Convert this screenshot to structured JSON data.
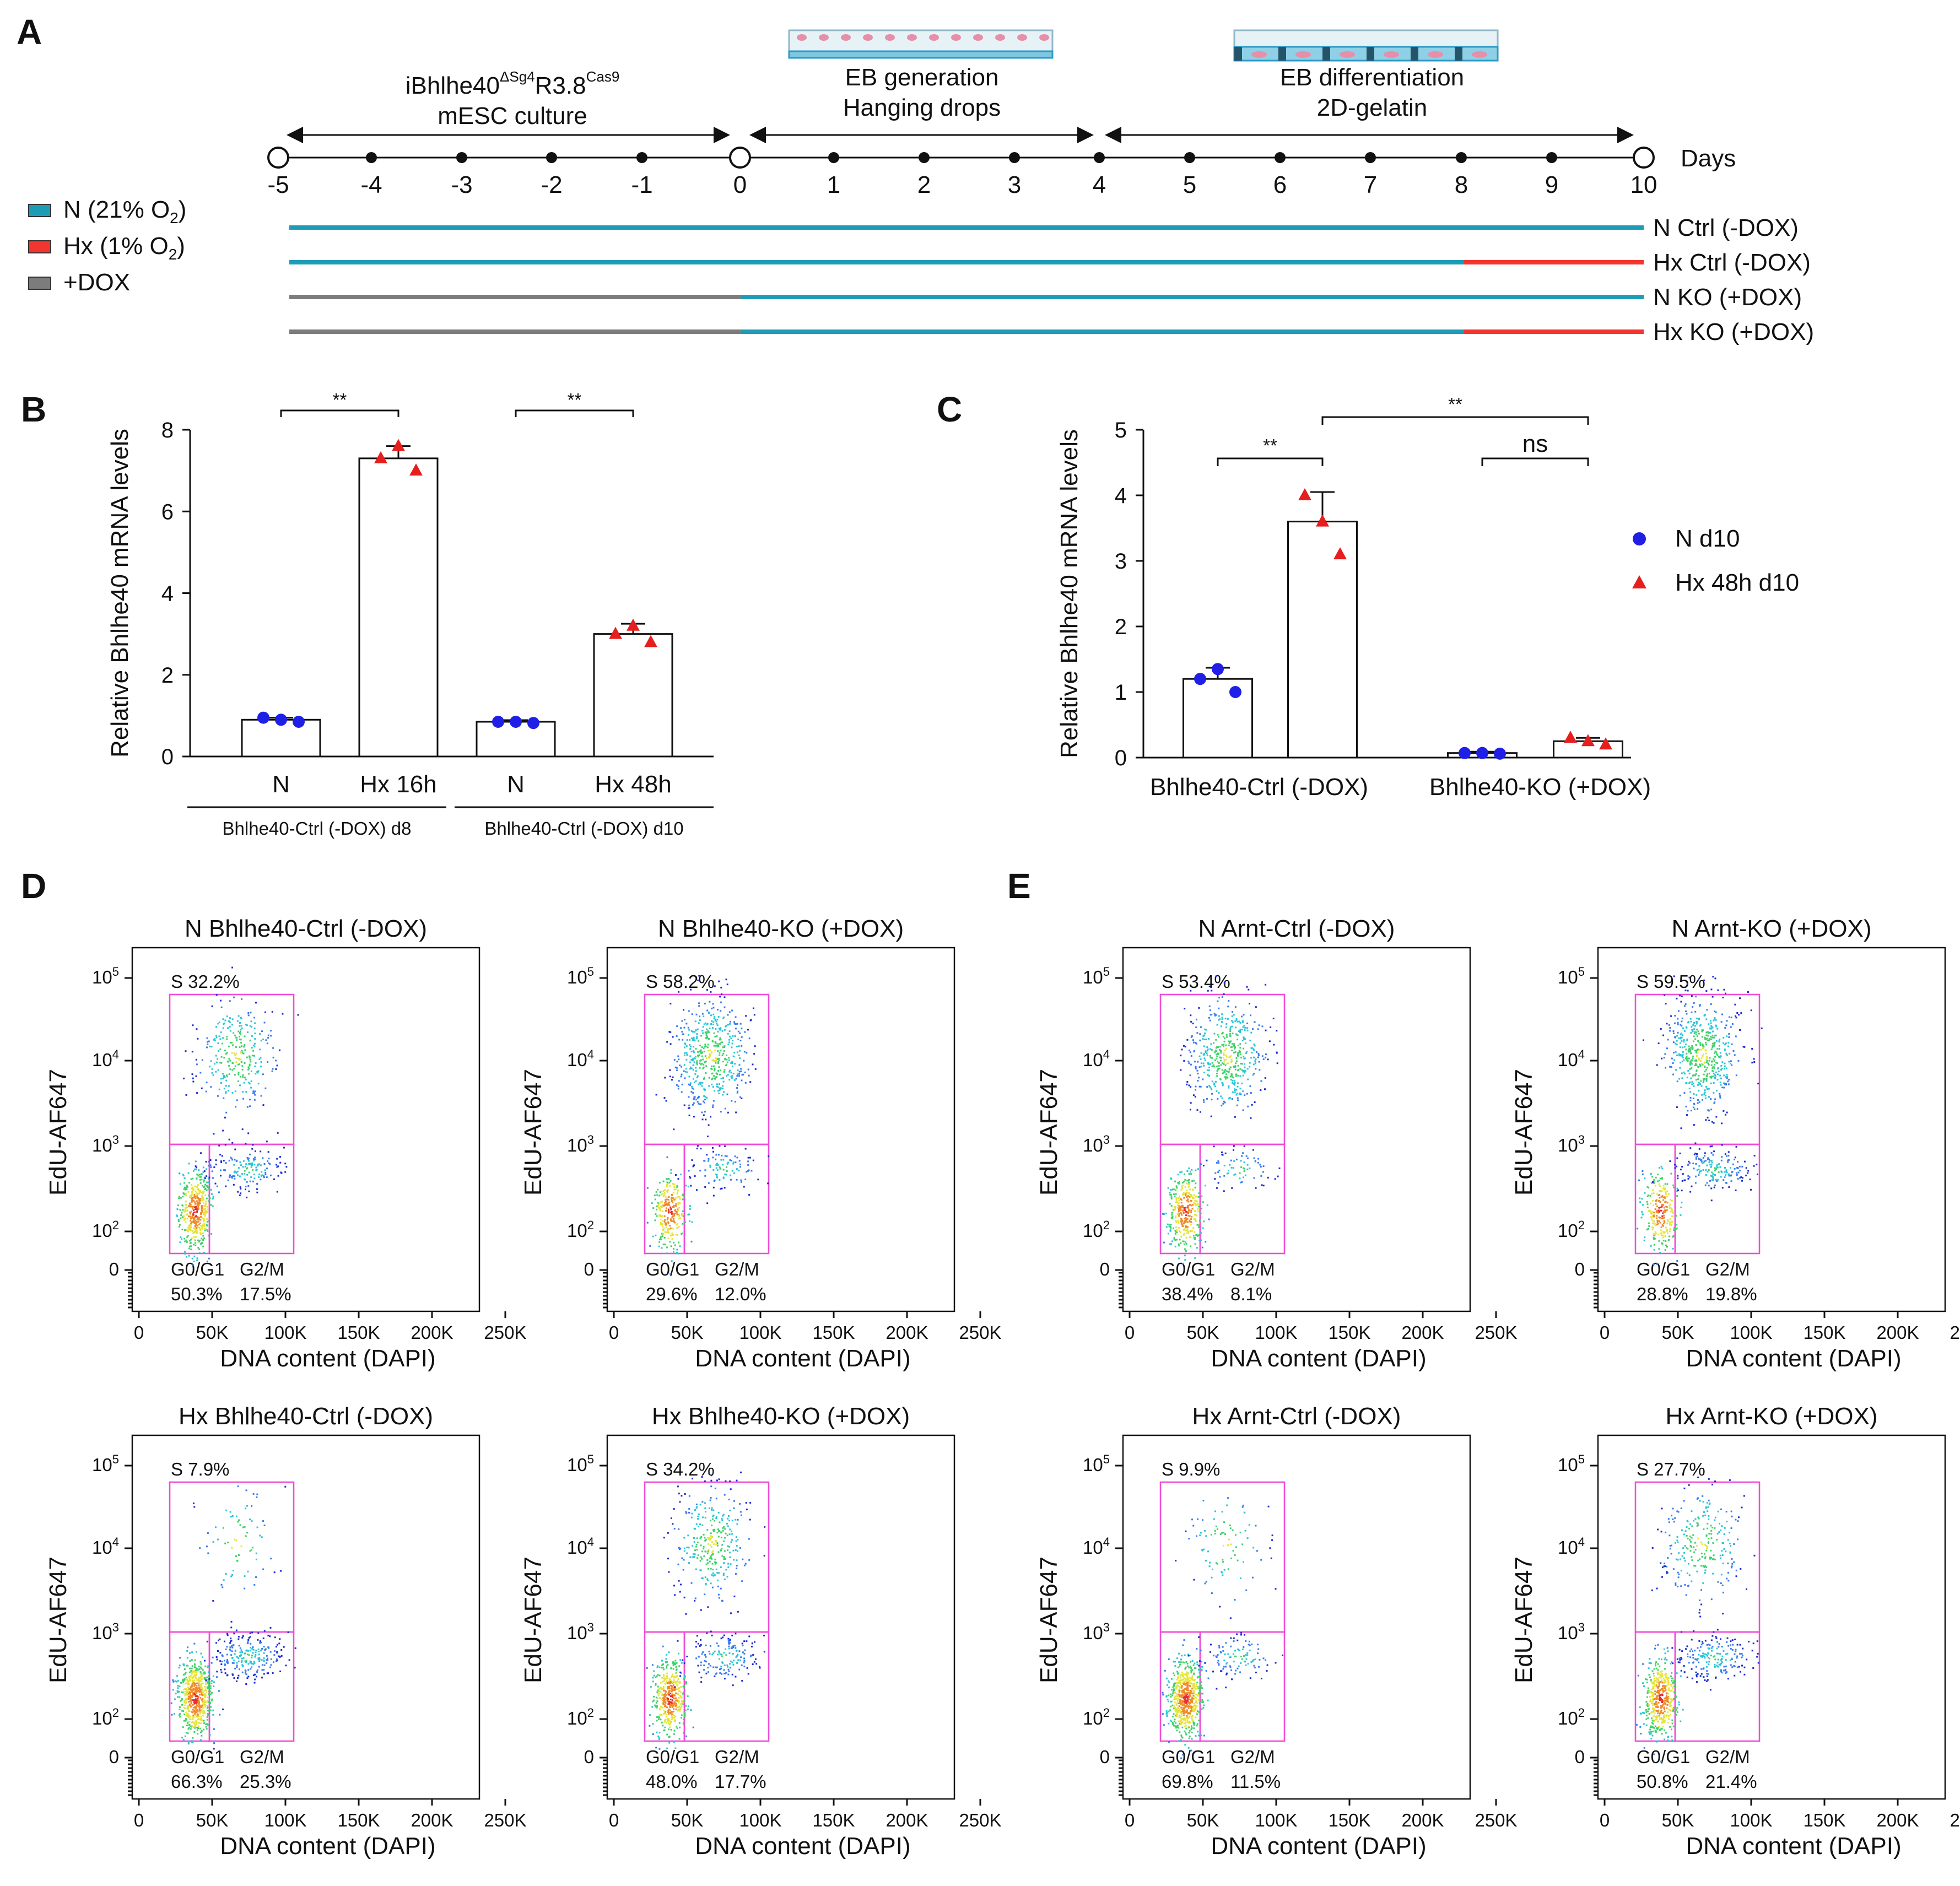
{
  "colors": {
    "normoxia": "#1e9cb6",
    "hypoxia": "#f2362f",
    "dox": "#7c7c7c",
    "point_n": "#1f1fe6",
    "point_hx": "#e61e1e",
    "gate": "#f04cd8"
  },
  "panelA": {
    "label": "A",
    "culture_title_prefix": "iBhlhe40",
    "culture_title_sup1": "ΔSg4",
    "culture_title_mid": "R3.8",
    "culture_title_sup2": "Cas9",
    "culture_title_line2": "mESC culture",
    "eb_gen_line1": "EB generation",
    "eb_gen_line2": "Hanging drops",
    "eb_diff_line1": "EB differentiation",
    "eb_diff_line2": "2D-gelatin",
    "days_label": "Days",
    "day_ticks": [
      "-5",
      "-4",
      "-3",
      "-2",
      "-1",
      "0",
      "1",
      "2",
      "3",
      "4",
      "5",
      "6",
      "7",
      "8",
      "9",
      "10"
    ],
    "legend": [
      {
        "name": "normoxia",
        "label": "N (21% O",
        "sub": "2",
        "close": ")",
        "color": "#1e9cb6"
      },
      {
        "name": "hypoxia",
        "label": "Hx (1% O",
        "sub": "2",
        "close": ")",
        "color": "#f2362f"
      },
      {
        "name": "dox",
        "label": "+DOX",
        "sub": "",
        "close": "",
        "color": "#7c7c7c"
      }
    ],
    "conditions": [
      {
        "label": "N Ctrl (-DOX)",
        "segments": [
          {
            "from": -5,
            "to": 10,
            "state": "N"
          }
        ]
      },
      {
        "label": "Hx Ctrl (-DOX)",
        "segments": [
          {
            "from": -5,
            "to": 8,
            "state": "N"
          },
          {
            "from": 8,
            "to": 10,
            "state": "Hx"
          }
        ]
      },
      {
        "label": "N KO (+DOX)",
        "segments": [
          {
            "from": -5,
            "to": 0,
            "state": "DOX"
          },
          {
            "from": 0,
            "to": 10,
            "state": "N"
          }
        ]
      },
      {
        "label": "Hx KO (+DOX)",
        "segments": [
          {
            "from": -5,
            "to": 0,
            "state": "DOX"
          },
          {
            "from": 0,
            "to": 8,
            "state": "N"
          },
          {
            "from": 8,
            "to": 10,
            "state": "Hx"
          }
        ]
      }
    ]
  },
  "chart_data": [
    {
      "panel": "B",
      "type": "bar",
      "ylabel": "Relative Bhlhe40 mRNA levels",
      "ylim": [
        0,
        8
      ],
      "yticks": [
        "0",
        "2",
        "4",
        "6",
        "8"
      ],
      "categories": [
        "N",
        "Hx 16h",
        "N",
        "Hx 48h"
      ],
      "groups": [
        {
          "label": "Bhlhe40-Ctrl (-DOX) d8",
          "categories": [
            0,
            1
          ]
        },
        {
          "label": "Bhlhe40-Ctrl (-DOX) d10",
          "categories": [
            2,
            3
          ]
        }
      ],
      "values": [
        0.9,
        7.3,
        0.85,
        3.0
      ],
      "errors": [
        0.05,
        0.3,
        0.04,
        0.25
      ],
      "points": [
        [
          0.95,
          0.9,
          0.85
        ],
        [
          7.3,
          7.6,
          7.0
        ],
        [
          0.85,
          0.85,
          0.82
        ],
        [
          3.0,
          3.2,
          2.8
        ]
      ],
      "point_state": [
        "N",
        "Hx",
        "N",
        "Hx"
      ],
      "significance": [
        {
          "between": [
            0,
            1
          ],
          "label": "**"
        },
        {
          "between": [
            2,
            3
          ],
          "label": "**"
        }
      ]
    },
    {
      "panel": "C",
      "type": "bar",
      "ylabel": "Relative Bhlhe40 mRNA levels",
      "ylim": [
        0,
        5
      ],
      "yticks": [
        "0",
        "1",
        "2",
        "3",
        "4",
        "5"
      ],
      "categories": [
        "N d10",
        "Hx 48h d10",
        "N d10",
        "Hx 48h d10"
      ],
      "groups": [
        {
          "label": "Bhlhe40-Ctrl (-DOX)",
          "categories": [
            0,
            1
          ]
        },
        {
          "label": "Bhlhe40-KO (+DOX)",
          "categories": [
            2,
            3
          ]
        }
      ],
      "values": [
        1.2,
        3.6,
        0.07,
        0.25
      ],
      "errors": [
        0.17,
        0.45,
        0.02,
        0.05
      ],
      "points": [
        [
          1.2,
          1.35,
          1.0
        ],
        [
          4.0,
          3.6,
          3.1
        ],
        [
          0.07,
          0.07,
          0.06
        ],
        [
          0.3,
          0.25,
          0.2
        ]
      ],
      "point_state": [
        "N",
        "Hx",
        "N",
        "Hx"
      ],
      "legend": [
        {
          "label": "N d10",
          "state": "N"
        },
        {
          "label": "Hx 48h d10",
          "state": "Hx"
        }
      ],
      "significance": [
        {
          "between": [
            0,
            1
          ],
          "label": "**"
        },
        {
          "between": [
            1,
            3
          ],
          "label": "**"
        },
        {
          "between": [
            2,
            3
          ],
          "label": "ns"
        }
      ]
    },
    {
      "panel": "D/E",
      "type": "scatter",
      "xlabel": "DNA content (DAPI)",
      "ylabel": "EdU-AF647",
      "xticks": [
        "0",
        "50K",
        "100K",
        "150K",
        "200K",
        "250K"
      ],
      "yticks": [
        {
          "base": "10",
          "exp": "5"
        },
        {
          "base": "10",
          "exp": "4"
        },
        {
          "base": "10",
          "exp": "3"
        },
        {
          "base": "10",
          "exp": "2"
        },
        {
          "base": "0",
          "exp": ""
        }
      ],
      "gate_labels": {
        "s": "S",
        "g0g1": "G0/G1",
        "g2m": "G2/M"
      },
      "plots": [
        {
          "panel": "D",
          "title": "N Bhlhe40-Ctrl (-DOX)",
          "s": "32.2%",
          "g0g1": "50.3%",
          "g2m": "17.5%"
        },
        {
          "panel": "D",
          "title": "N Bhlhe40-KO (+DOX)",
          "s": "58.2%",
          "g0g1": "29.6%",
          "g2m": "12.0%"
        },
        {
          "panel": "E",
          "title": "N Arnt-Ctrl (-DOX)",
          "s": "53.4%",
          "g0g1": "38.4%",
          "g2m": "8.1%"
        },
        {
          "panel": "E",
          "title": "N Arnt-KO (+DOX)",
          "s": "59.5%",
          "g0g1": "28.8%",
          "g2m": "19.8%"
        },
        {
          "panel": "D",
          "title": "Hx Bhlhe40-Ctrl (-DOX)",
          "s": "7.9%",
          "g0g1": "66.3%",
          "g2m": "25.3%"
        },
        {
          "panel": "D",
          "title": "Hx Bhlhe40-KO (+DOX)",
          "s": "34.2%",
          "g0g1": "48.0%",
          "g2m": "17.7%"
        },
        {
          "panel": "E",
          "title": "Hx Arnt-Ctrl (-DOX)",
          "s": "9.9%",
          "g0g1": "69.8%",
          "g2m": "11.5%"
        },
        {
          "panel": "E",
          "title": "Hx Arnt-KO (+DOX)",
          "s": "27.7%",
          "g0g1": "50.8%",
          "g2m": "21.4%"
        }
      ]
    }
  ],
  "panel_labels": {
    "b": "B",
    "c": "C",
    "d": "D",
    "e": "E"
  }
}
